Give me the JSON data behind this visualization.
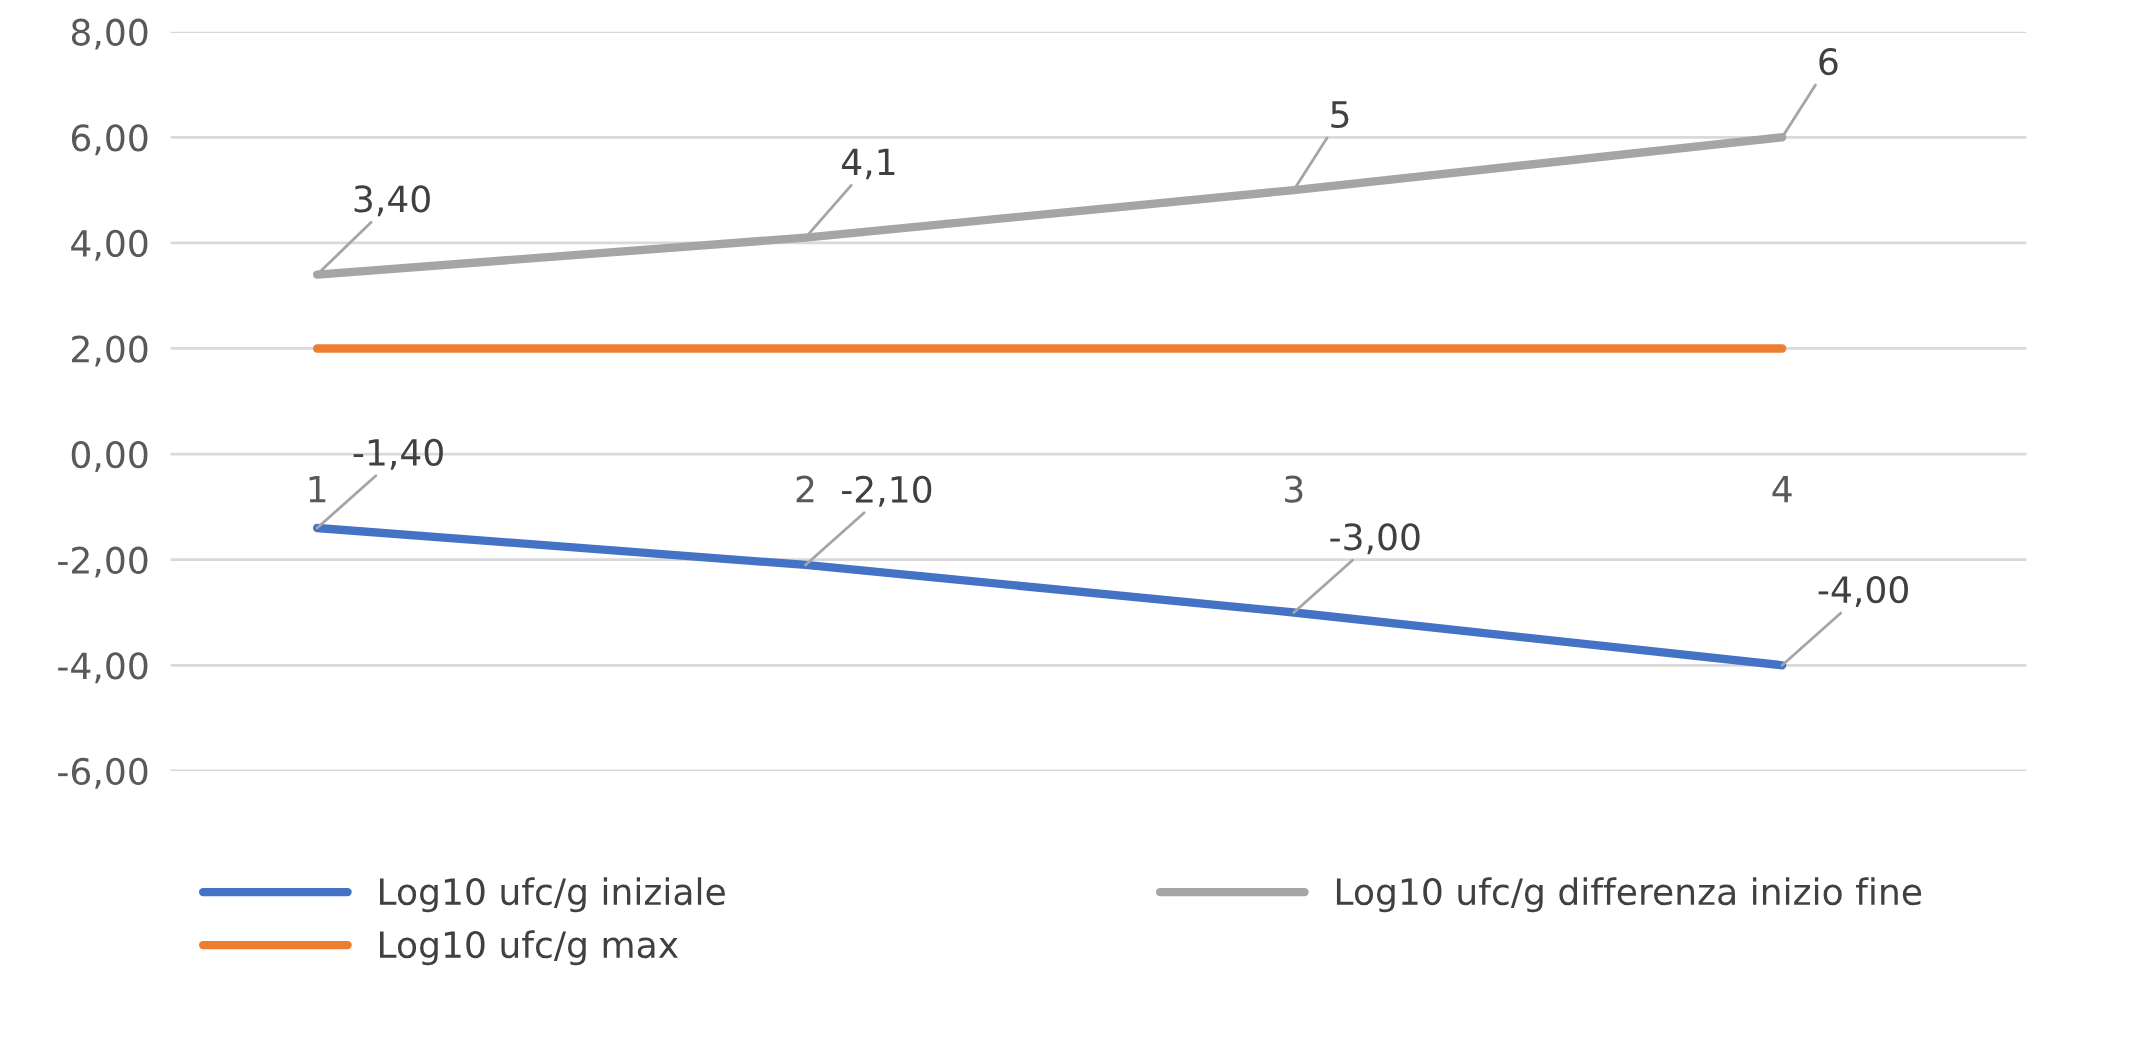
{
  "chart_data": {
    "type": "line",
    "categories": [
      "1",
      "2",
      "3",
      "4"
    ],
    "series": [
      {
        "name": "Log10 ufc/g iniziale",
        "color": "#4472c4",
        "values": [
          -1.4,
          -2.1,
          -3.0,
          -4.0
        ],
        "value_labels": [
          "-1,40",
          "-2,10",
          "-3,00",
          "-4,00"
        ]
      },
      {
        "name": "Log10 ufc/g max",
        "color": "#ed7d31",
        "values": [
          2,
          2,
          2,
          2
        ]
      },
      {
        "name": "Log10 ufc/g differenza inizio fine",
        "color": "#a5a5a5",
        "values": [
          3.4,
          4.1,
          5,
          6
        ],
        "value_labels": [
          "3,40",
          "4,1",
          "5",
          "6"
        ]
      }
    ],
    "ylim": [
      -6,
      8
    ],
    "yticks": [
      {
        "value": -6,
        "label": "-6,00"
      },
      {
        "value": -4,
        "label": "-4,00"
      },
      {
        "value": -2,
        "label": "-2,00"
      },
      {
        "value": 0,
        "label": "0,00"
      },
      {
        "value": 2,
        "label": "2,00"
      },
      {
        "value": 4,
        "label": "4,00"
      },
      {
        "value": 6,
        "label": "6,00"
      },
      {
        "value": 8,
        "label": "8,00"
      }
    ],
    "grid": "y",
    "legend": "bottom",
    "marker": "none",
    "line_style": "solid"
  }
}
